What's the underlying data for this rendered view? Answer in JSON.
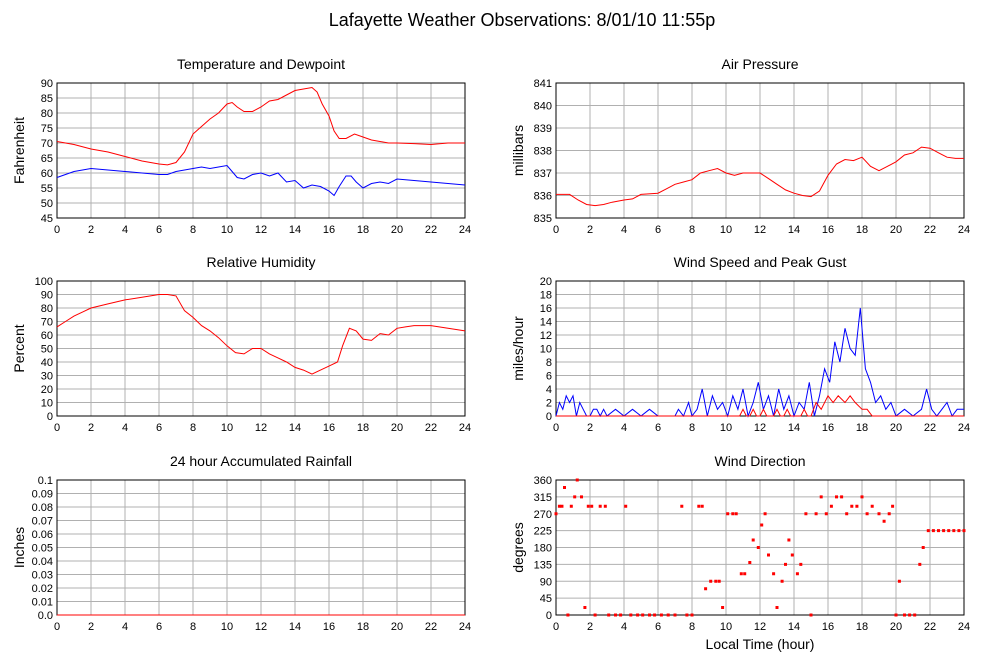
{
  "page": {
    "title": "Lafayette Weather Observations: 8/01/10 11:55p",
    "x_axis_label": "Local Time (hour)"
  },
  "colors": {
    "red": "#ff0000",
    "blue": "#0000ff",
    "grid": "#b0b0b0",
    "frame": "#000000"
  },
  "chart_data": [
    {
      "id": "temp",
      "type": "line",
      "title": "Temperature and Dewpoint",
      "ylabel": "Fahrenheit",
      "xlim": [
        0,
        24
      ],
      "ylim": [
        45,
        90
      ],
      "xticks": [
        0,
        2,
        4,
        6,
        8,
        10,
        12,
        14,
        16,
        18,
        20,
        22,
        24
      ],
      "yticks": [
        45,
        50,
        55,
        60,
        65,
        70,
        75,
        80,
        85,
        90
      ],
      "grid": true,
      "series": [
        {
          "color": "#ff0000",
          "x": [
            0,
            1,
            2,
            3,
            4,
            5,
            6,
            6.5,
            7,
            7.5,
            8,
            8.5,
            9,
            9.5,
            10,
            10.3,
            10.6,
            11,
            11.5,
            12,
            12.5,
            13,
            13.5,
            14,
            14.5,
            15,
            15.3,
            15.6,
            16,
            16.3,
            16.6,
            17,
            17.5,
            18,
            18.5,
            19,
            19.5,
            20,
            21,
            22,
            23,
            24
          ],
          "y": [
            70.5,
            69.5,
            68,
            67,
            65.5,
            64,
            63,
            62.7,
            63.5,
            67,
            73,
            75.5,
            78,
            80,
            83,
            83.5,
            82,
            80.5,
            80.5,
            82,
            84,
            84.5,
            86,
            87.5,
            88,
            88.5,
            87,
            83,
            79,
            74,
            71.5,
            71.5,
            73,
            72,
            71,
            70.5,
            70,
            70,
            69.8,
            69.5,
            70,
            70
          ]
        },
        {
          "color": "#0000ff",
          "x": [
            0,
            0.5,
            1,
            2,
            3,
            4,
            5,
            6,
            6.5,
            7,
            7.5,
            8,
            8.5,
            9,
            9.5,
            10,
            10.3,
            10.6,
            11,
            11.5,
            12,
            12.5,
            13,
            13.5,
            14,
            14.5,
            15,
            15.5,
            16,
            16.3,
            16.6,
            17,
            17.3,
            17.6,
            18,
            18.5,
            19,
            19.5,
            20,
            21,
            22,
            23,
            24
          ],
          "y": [
            58.5,
            59.5,
            60.5,
            61.5,
            61,
            60.5,
            60,
            59.5,
            59.5,
            60.5,
            61,
            61.5,
            62,
            61.5,
            62,
            62.5,
            60.5,
            58.5,
            58,
            59.5,
            60,
            59,
            60,
            57,
            57.5,
            55,
            56,
            55.5,
            54,
            52.5,
            55.5,
            59,
            59,
            57,
            55,
            56.5,
            57,
            56.5,
            58,
            57.5,
            57,
            56.5,
            56
          ]
        }
      ]
    },
    {
      "id": "pressure",
      "type": "line",
      "title": "Air Pressure",
      "ylabel": "millibars",
      "xlim": [
        0,
        24
      ],
      "ylim": [
        835,
        841
      ],
      "xticks": [
        0,
        2,
        4,
        6,
        8,
        10,
        12,
        14,
        16,
        18,
        20,
        22,
        24
      ],
      "yticks": [
        835,
        836,
        837,
        838,
        839,
        840,
        841
      ],
      "grid": true,
      "series": [
        {
          "color": "#ff0000",
          "x": [
            0,
            0.8,
            1.3,
            1.8,
            2.3,
            2.8,
            3.3,
            4,
            4.5,
            5,
            6,
            6.5,
            7,
            7.5,
            8,
            8.5,
            9,
            9.5,
            10,
            10.5,
            11,
            11.5,
            12,
            12.5,
            13,
            13.5,
            14,
            14.5,
            15,
            15.5,
            16,
            16.5,
            17,
            17.5,
            18,
            18.5,
            19,
            19.5,
            20,
            20.5,
            21,
            21.5,
            22,
            22.5,
            23,
            23.5,
            24
          ],
          "y": [
            836.05,
            836.05,
            835.8,
            835.6,
            835.55,
            835.6,
            835.7,
            835.8,
            835.85,
            836.05,
            836.1,
            836.3,
            836.5,
            836.6,
            836.7,
            837.0,
            837.1,
            837.2,
            837.0,
            836.9,
            837.0,
            837.0,
            837.0,
            836.75,
            836.5,
            836.25,
            836.1,
            836.0,
            835.95,
            836.2,
            836.9,
            837.4,
            837.6,
            837.55,
            837.7,
            837.3,
            837.1,
            837.3,
            837.5,
            837.8,
            837.9,
            838.15,
            838.1,
            837.9,
            837.7,
            837.65,
            837.65
          ]
        }
      ]
    },
    {
      "id": "rh",
      "type": "line",
      "title": "Relative Humidity",
      "ylabel": "Percent",
      "xlim": [
        0,
        24
      ],
      "ylim": [
        0,
        100
      ],
      "xticks": [
        0,
        2,
        4,
        6,
        8,
        10,
        12,
        14,
        16,
        18,
        20,
        22,
        24
      ],
      "yticks": [
        0,
        10,
        20,
        30,
        40,
        50,
        60,
        70,
        80,
        90,
        100
      ],
      "grid": true,
      "series": [
        {
          "color": "#ff0000",
          "x": [
            0,
            0.5,
            1,
            1.5,
            2,
            3,
            4,
            5,
            6,
            6.5,
            7,
            7.5,
            8,
            8.5,
            9,
            9.5,
            10,
            10.5,
            11,
            11.5,
            12,
            12.5,
            13,
            13.5,
            14,
            14.5,
            15,
            15.5,
            16,
            16.5,
            16.8,
            17.2,
            17.6,
            18,
            18.5,
            19,
            19.5,
            20,
            20.5,
            21,
            22,
            23,
            24
          ],
          "y": [
            66,
            70,
            74,
            77,
            80,
            83,
            86,
            88,
            90,
            90,
            89,
            78,
            73,
            67,
            63,
            58,
            52,
            47,
            46,
            50,
            50,
            46,
            43,
            40,
            36,
            34,
            31,
            34,
            37,
            40,
            52,
            65,
            63,
            57,
            56,
            61,
            60,
            65,
            66,
            67,
            67,
            65,
            63
          ]
        }
      ]
    },
    {
      "id": "wind",
      "type": "line",
      "title": "Wind Speed and Peak Gust",
      "ylabel": "miles/hour",
      "xlim": [
        0,
        24
      ],
      "ylim": [
        0,
        20
      ],
      "xticks": [
        0,
        2,
        4,
        6,
        8,
        10,
        12,
        14,
        16,
        18,
        20,
        22,
        24
      ],
      "yticks": [
        0,
        2,
        4,
        6,
        8,
        10,
        12,
        14,
        16,
        18,
        20
      ],
      "grid": true,
      "series": [
        {
          "color": "#0000ff",
          "x": [
            0,
            0.2,
            0.4,
            0.6,
            0.8,
            1,
            1.2,
            1.4,
            1.6,
            1.8,
            2,
            2.2,
            2.4,
            2.6,
            2.8,
            3,
            3.5,
            4,
            4.5,
            5,
            5.5,
            6,
            6.5,
            7,
            7.2,
            7.5,
            7.8,
            8,
            8.3,
            8.6,
            8.9,
            9.2,
            9.5,
            9.8,
            10.1,
            10.4,
            10.7,
            11,
            11.3,
            11.6,
            11.9,
            12.2,
            12.5,
            12.8,
            13.1,
            13.4,
            13.7,
            14,
            14.3,
            14.6,
            14.9,
            15.2,
            15.5,
            15.8,
            16.1,
            16.4,
            16.7,
            17,
            17.3,
            17.6,
            17.9,
            18.2,
            18.5,
            18.8,
            19.1,
            19.4,
            19.7,
            20,
            20.5,
            21,
            21.5,
            21.8,
            22.1,
            22.4,
            22.7,
            23,
            23.3,
            23.6,
            24
          ],
          "y": [
            0,
            2,
            1,
            3,
            2,
            3,
            0,
            2,
            1,
            0,
            0,
            1,
            1,
            0,
            1,
            0,
            1,
            0,
            1,
            0,
            1,
            0,
            0,
            0,
            1,
            0,
            2,
            0,
            1,
            4,
            0,
            3,
            1,
            2,
            0,
            3,
            1,
            4,
            0,
            2,
            5,
            1,
            3,
            0,
            4,
            1,
            3,
            0,
            2,
            1,
            5,
            0,
            3,
            7,
            5,
            11,
            8,
            13,
            10,
            9,
            16,
            7,
            5,
            2,
            3,
            1,
            2,
            0,
            1,
            0,
            1,
            4,
            1,
            0,
            1,
            2,
            0,
            1,
            1
          ]
        },
        {
          "color": "#ff0000",
          "x": [
            0,
            10.5,
            10.8,
            11,
            11.2,
            11.4,
            11.6,
            11.8,
            12,
            12.2,
            12.4,
            12.6,
            12.8,
            13,
            13.2,
            13.4,
            13.6,
            13.8,
            14,
            14.2,
            14.4,
            14.6,
            14.8,
            15,
            15.3,
            15.6,
            16,
            16.3,
            16.6,
            17,
            17.3,
            17.6,
            18,
            18.3,
            18.6,
            19,
            24
          ],
          "y": [
            0,
            0,
            0,
            1,
            0,
            0,
            1,
            0,
            0,
            1,
            0,
            0,
            0,
            1,
            0,
            0,
            1,
            0,
            0,
            0,
            0,
            1,
            0,
            0,
            2,
            1,
            3,
            2,
            3,
            2,
            3,
            2,
            1,
            1,
            0,
            0,
            0
          ]
        }
      ]
    },
    {
      "id": "rain",
      "type": "line",
      "title": "24 hour Accumulated Rainfall",
      "ylabel": "Inches",
      "xlim": [
        0,
        24
      ],
      "ylim": [
        0,
        0.1
      ],
      "xticks": [
        0,
        2,
        4,
        6,
        8,
        10,
        12,
        14,
        16,
        18,
        20,
        22,
        24
      ],
      "yticks": [
        0.0,
        0.01,
        0.02,
        0.03,
        0.04,
        0.05,
        0.06,
        0.07,
        0.08,
        0.09,
        0.1
      ],
      "ytick_labels": [
        "0.0",
        "0.01",
        "0.02",
        "0.03",
        "0.04",
        "0.05",
        "0.06",
        "0.07",
        "0.08",
        "0.09",
        "0.1"
      ],
      "grid": true,
      "series": [
        {
          "color": "#ff0000",
          "x": [
            0,
            24
          ],
          "y": [
            0,
            0
          ]
        }
      ]
    },
    {
      "id": "dir",
      "type": "scatter",
      "title": "Wind Direction",
      "ylabel": "degrees",
      "xlim": [
        0,
        24
      ],
      "ylim": [
        0,
        360
      ],
      "xticks": [
        0,
        2,
        4,
        6,
        8,
        10,
        12,
        14,
        16,
        18,
        20,
        22,
        24
      ],
      "yticks": [
        0,
        45,
        90,
        135,
        180,
        225,
        270,
        315,
        360
      ],
      "grid": true,
      "series": [
        {
          "color": "#ff0000",
          "x": [
            0,
            0.2,
            0.35,
            0.5,
            0.7,
            0.9,
            1.1,
            1.25,
            1.5,
            1.7,
            1.9,
            2.1,
            2.3,
            2.6,
            2.9,
            3.1,
            3.5,
            3.8,
            4.1,
            4.4,
            4.8,
            5.1,
            5.5,
            5.8,
            6.2,
            6.6,
            7,
            7.4,
            7.7,
            8,
            8.4,
            8.6,
            8.8,
            9.1,
            9.4,
            9.6,
            9.8,
            10.1,
            10.4,
            10.6,
            10.9,
            11.1,
            11.4,
            11.6,
            11.9,
            12.1,
            12.3,
            12.5,
            12.8,
            13,
            13.3,
            13.5,
            13.7,
            13.9,
            14.2,
            14.4,
            14.7,
            15,
            15.3,
            15.6,
            15.9,
            16.2,
            16.5,
            16.8,
            17.1,
            17.4,
            17.7,
            18,
            18.3,
            18.6,
            19,
            19.3,
            19.6,
            19.8,
            20,
            20.2,
            20.5,
            20.8,
            21.1,
            21.4,
            21.6,
            21.9,
            22.2,
            22.5,
            22.8,
            23.1,
            23.4,
            23.7,
            24
          ],
          "y": [
            270,
            290,
            290,
            340,
            0,
            290,
            315,
            360,
            315,
            20,
            290,
            290,
            0,
            290,
            290,
            0,
            0,
            0,
            290,
            0,
            0,
            0,
            0,
            0,
            0,
            0,
            0,
            290,
            0,
            0,
            290,
            290,
            70,
            90,
            90,
            90,
            20,
            270,
            270,
            270,
            110,
            110,
            140,
            200,
            180,
            240,
            270,
            160,
            110,
            20,
            90,
            135,
            200,
            160,
            110,
            135,
            270,
            0,
            270,
            315,
            270,
            290,
            315,
            315,
            270,
            290,
            290,
            315,
            270,
            290,
            270,
            250,
            270,
            290,
            0,
            90,
            0,
            0,
            0,
            135,
            180,
            225,
            225,
            225,
            225,
            225,
            225,
            225,
            225
          ]
        }
      ]
    }
  ]
}
